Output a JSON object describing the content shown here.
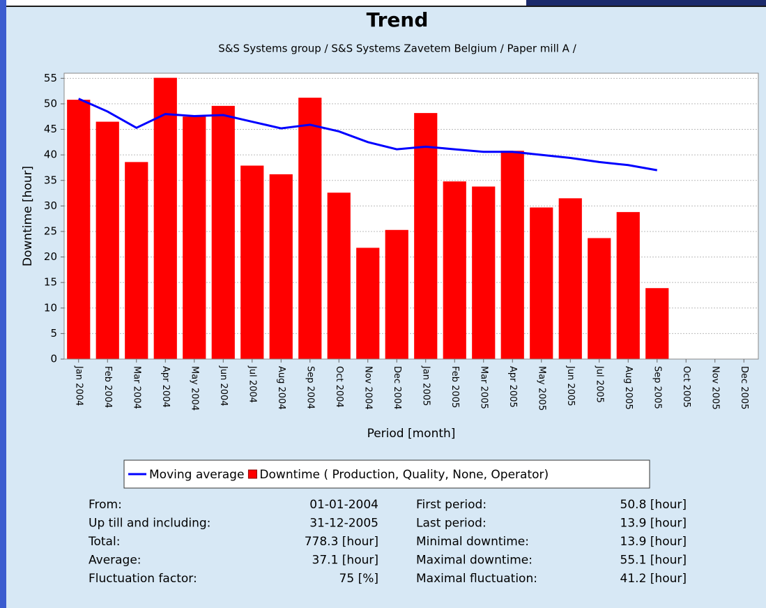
{
  "chart_data": {
    "type": "bar",
    "title": "Trend",
    "subtitle": "S&S Systems group / S&S Systems Zavetem Belgium / Paper mill A /",
    "x_label": "Period [month]",
    "y_label": "Downtime [hour]",
    "categories": [
      "Jan 2004",
      "Feb 2004",
      "Mar 2004",
      "Apr 2004",
      "May 2004",
      "Jun 2004",
      "Jul 2004",
      "Aug 2004",
      "Sep 2004",
      "Oct 2004",
      "Nov 2004",
      "Dec 2004",
      "Jan 2005",
      "Feb 2005",
      "Mar 2005",
      "Apr 2005",
      "May 2005",
      "Jun 2005",
      "Jul 2005",
      "Aug 2005",
      "Sep 2005",
      "Oct 2005",
      "Nov 2005",
      "Dec 2005"
    ],
    "series": [
      {
        "name": "Moving average",
        "type": "line",
        "color": "#0000ff",
        "values": [
          51.0,
          48.5,
          45.3,
          48.0,
          47.6,
          47.8,
          46.5,
          45.2,
          45.9,
          44.6,
          42.5,
          41.1,
          41.6,
          41.1,
          40.6,
          40.6,
          40.0,
          39.4,
          38.6,
          38.0,
          37.0,
          null,
          null,
          null
        ]
      },
      {
        "name": "Downtime ( Production, Quality, None, Operator)",
        "type": "bar",
        "color": "#ff0000",
        "values": [
          50.8,
          46.5,
          38.6,
          55.1,
          47.5,
          49.6,
          37.9,
          36.2,
          51.2,
          32.6,
          21.8,
          25.3,
          48.2,
          34.8,
          33.8,
          40.8,
          29.7,
          31.5,
          23.7,
          28.8,
          13.9,
          null,
          null,
          null
        ]
      }
    ],
    "ylim": [
      0,
      56
    ],
    "yticks": [
      0,
      5,
      10,
      15,
      20,
      25,
      30,
      35,
      40,
      45,
      50,
      55
    ],
    "grid": true,
    "legend": "bottom"
  },
  "stats": {
    "rows": [
      [
        "From:",
        "01-01-2004",
        "First period:",
        "50.8 [hour]"
      ],
      [
        "Up till and including:",
        "31-12-2005",
        "Last period:",
        "13.9 [hour]"
      ],
      [
        "Total:",
        "778.3 [hour]",
        "Minimal downtime:",
        "13.9 [hour]"
      ],
      [
        "Average:",
        "37.1 [hour]",
        "Maximal downtime:",
        "55.1 [hour]"
      ],
      [
        "Fluctuation factor:",
        "75 [%]",
        "Maximal fluctuation:",
        "41.2 [hour]"
      ]
    ]
  }
}
